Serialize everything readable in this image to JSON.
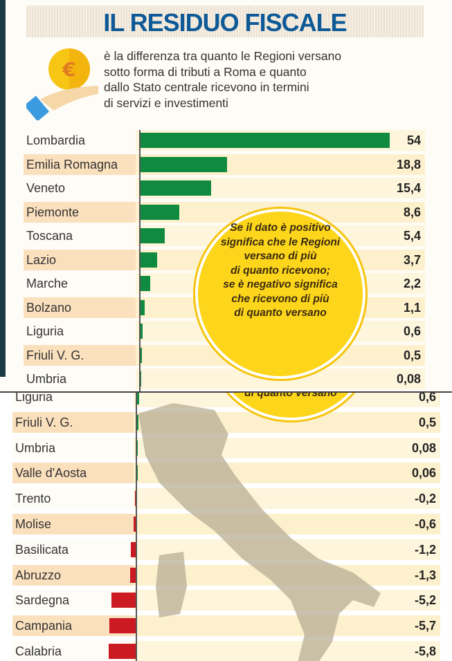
{
  "title": "IL RESIDUO FISCALE",
  "description": [
    "è la differenza tra quanto le Regioni versano",
    "sotto forma di tributi a Roma e quanto",
    "dallo Stato centrale ricevono in termini",
    "di servizi e investimenti"
  ],
  "note": [
    "Se il dato è positivo",
    "significa che le Regioni",
    "versano di più",
    "di quanto ricevono;",
    "se è negativo significa",
    "che ricevono di più",
    "di quanto versano"
  ],
  "note_partial": "di quanto versano",
  "colors": {
    "positive": "#108a3e",
    "negative": "#cc1a22",
    "title": "#0d5a97",
    "bubble": "#fdd51a"
  },
  "chart_data": {
    "type": "bar",
    "orientation": "horizontal",
    "categories": [
      "Lombardia",
      "Emilia Romagna",
      "Veneto",
      "Piemonte",
      "Toscana",
      "Lazio",
      "Marche",
      "Bolzano",
      "Liguria",
      "Friuli V. G.",
      "Umbria",
      "Valle d'Aosta",
      "Trento",
      "Molise",
      "Basilicata",
      "Abruzzo",
      "Sardegna",
      "Campania",
      "Calabria"
    ],
    "values": [
      54,
      18.8,
      15.4,
      8.6,
      5.4,
      3.7,
      2.2,
      1.1,
      0.6,
      0.5,
      0.08,
      0.06,
      -0.2,
      -0.6,
      -1.2,
      -1.3,
      -5.2,
      -5.7,
      -5.8
    ],
    "labels": [
      "54",
      "18,8",
      "15,4",
      "8,6",
      "5,4",
      "3,7",
      "2,2",
      "1,1",
      "0,6",
      "0,5",
      "0,08",
      "0,06",
      "-0,2",
      "-0,6",
      "-1,2",
      "-1,3",
      "-5,2",
      "-5,7",
      "-5,8"
    ]
  }
}
